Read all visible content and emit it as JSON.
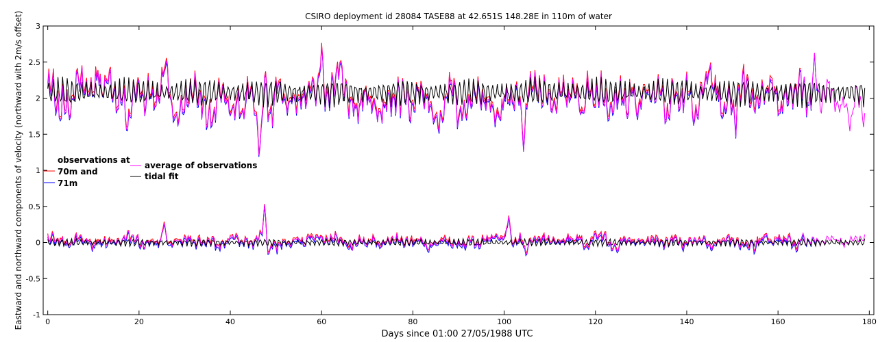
{
  "chart_data": {
    "type": "line",
    "title": "CSIRO deployment id 28084 TASE88 at 42.651S 148.28E in 110m of water",
    "xlabel": "Days since 01:00 27/05/1988 UTC",
    "ylabel": "Eastward  and northward components of velocity  (northward with 2m/s offset)",
    "xlim": [
      -1,
      181
    ],
    "ylim": [
      -1,
      3
    ],
    "xticks": [
      0,
      20,
      40,
      60,
      80,
      100,
      120,
      140,
      160,
      180
    ],
    "yticks": [
      -1,
      -0.5,
      0,
      0.5,
      1,
      1.5,
      2,
      2.5,
      3
    ],
    "ytick_labels": [
      "-1",
      "-0.5",
      "0",
      "0.5",
      "1",
      "1.5",
      "2",
      "2.5",
      "3"
    ],
    "legend": {
      "heading": "observations at",
      "entries": [
        {
          "label": "70m and",
          "color": "#ff0000"
        },
        {
          "label": "71m",
          "color": "#0000ff"
        },
        {
          "label": "average of observations",
          "color": "#ff00ff"
        },
        {
          "label": "tidal fit",
          "color": "#000000"
        }
      ]
    },
    "series": [
      {
        "name": "observations at 70m",
        "color": "#ff0000",
        "component": "northward (offset +2) and eastward",
        "x_range": [
          0,
          165
        ]
      },
      {
        "name": "observations at 71m",
        "color": "#0000ff",
        "component": "northward (offset +2) and eastward",
        "x_range": [
          0,
          169
        ]
      },
      {
        "name": "average of observations",
        "color": "#ff00ff",
        "component": "northward (offset +2) and eastward",
        "x_range": [
          0,
          179
        ]
      },
      {
        "name": "tidal fit",
        "color": "#000000",
        "component": "northward (offset +2) and eastward",
        "x_range": [
          0,
          179
        ]
      }
    ],
    "north_anomalies": [
      {
        "x": 11,
        "v": 0.45
      },
      {
        "x": 18,
        "v": -0.3
      },
      {
        "x": 26,
        "v": 0.4
      },
      {
        "x": 46.5,
        "v": -0.5
      },
      {
        "x": 47.5,
        "v": 0.45
      },
      {
        "x": 60,
        "v": 0.55
      },
      {
        "x": 64,
        "v": 0.5
      },
      {
        "x": 90,
        "v": -0.3
      },
      {
        "x": 104.5,
        "v": -0.5
      },
      {
        "x": 105,
        "v": 0.5
      },
      {
        "x": 127,
        "v": -0.35
      },
      {
        "x": 145,
        "v": 0.35
      },
      {
        "x": 150.5,
        "v": -0.4
      },
      {
        "x": 168,
        "v": 0.4
      },
      {
        "x": 176,
        "v": -0.35
      }
    ],
    "east_anomalies": [
      {
        "x": 25.5,
        "v": 0.25
      },
      {
        "x": 47.5,
        "v": 0.4
      },
      {
        "x": 48.5,
        "v": -0.2
      },
      {
        "x": 101,
        "v": 0.35
      },
      {
        "x": 104.8,
        "v": -0.15
      },
      {
        "x": 125,
        "v": -0.15
      },
      {
        "x": 155,
        "v": -0.2
      }
    ]
  }
}
